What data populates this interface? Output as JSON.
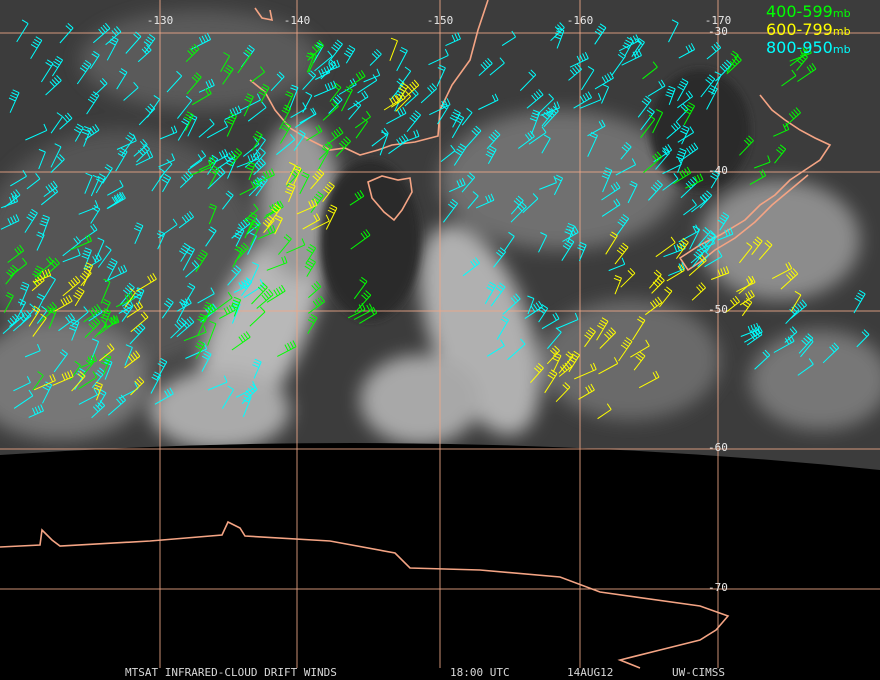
{
  "map": {
    "longitude_labels": [
      "-130",
      "-140",
      "-150",
      "-160",
      "-170"
    ],
    "latitude_labels": [
      "-30",
      "-40",
      "-50",
      "-60",
      "-70"
    ],
    "legend": [
      {
        "range": "400-599",
        "unit": "mb",
        "color": "#00ff00"
      },
      {
        "range": "600-799",
        "unit": "mb",
        "color": "#ffff00"
      },
      {
        "range": "800-950",
        "unit": "mb",
        "color": "#00ffff"
      }
    ],
    "footer": {
      "title": "MTSAT INFRARED-CLOUD DRIFT WINDS",
      "time": "18:00 UTC",
      "date": "14AUG12",
      "source": "UW-CIMSS"
    }
  }
}
